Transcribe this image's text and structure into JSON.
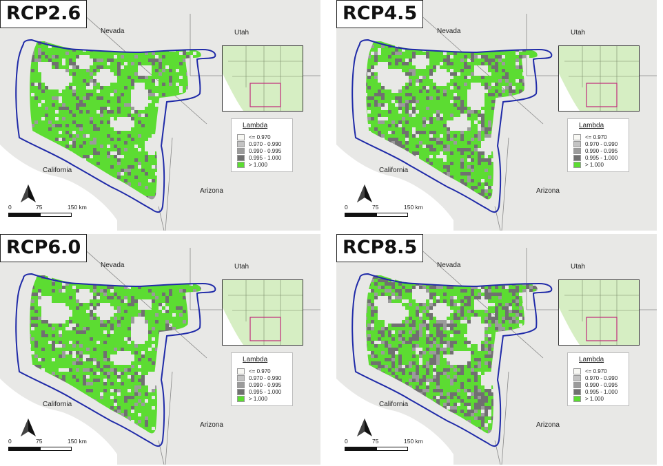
{
  "panels": [
    {
      "scenario": "RCP2.6",
      "grey_share": 0.2
    },
    {
      "scenario": "RCP4.5",
      "grey_share": 0.28
    },
    {
      "scenario": "RCP6.0",
      "grey_share": 0.2
    },
    {
      "scenario": "RCP8.5",
      "grey_share": 0.45
    }
  ],
  "states": {
    "nevada": "Nevada",
    "utah": "Utah",
    "california": "California",
    "arizona": "Arizona"
  },
  "legend": {
    "title": "Lambda",
    "items": [
      {
        "label": "<= 0.970",
        "color": "#f7f7f3"
      },
      {
        "label": "0.970 - 0.990",
        "color": "#c3c3c3"
      },
      {
        "label": "0.990 - 0.995",
        "color": "#9b9b9b"
      },
      {
        "label": "0.995 - 1.000",
        "color": "#707070"
      },
      {
        "label": "> 1.000",
        "color": "#5cdc32"
      }
    ]
  },
  "scale": {
    "t0": "0",
    "t1": "75",
    "t2": "150 km"
  },
  "colors": {
    "background": "#e8e8e6",
    "boundary": "#1f2aa8",
    "green": "#5cdc32",
    "grey": "#707070",
    "inset_fill": "#d6eec3",
    "inset_box": "#c0287a"
  }
}
